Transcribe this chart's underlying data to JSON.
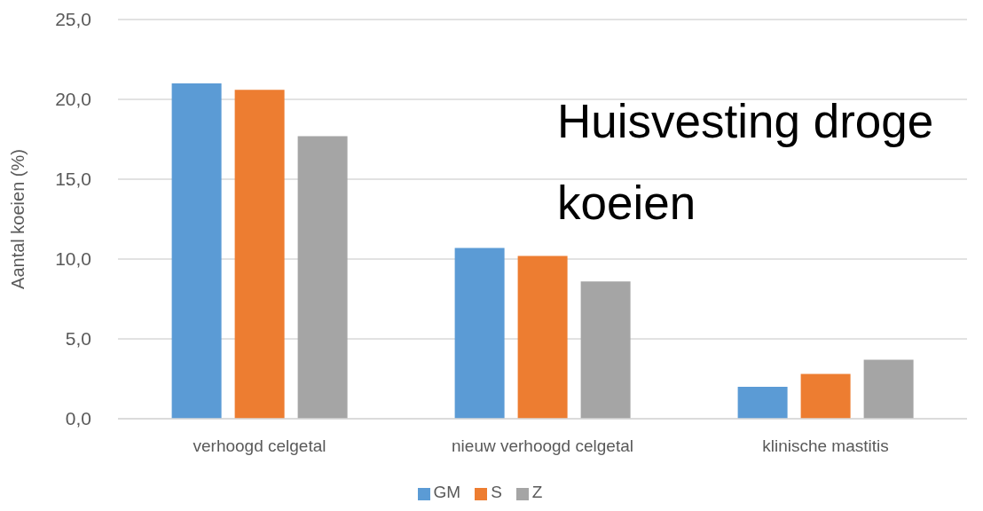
{
  "chart_data": {
    "type": "bar",
    "title": "Huisvesting droge koeien",
    "ylabel": "Aantal koeien (%)",
    "categories": [
      "verhoogd celgetal",
      "nieuw verhoogd celgetal",
      "klinische mastitis"
    ],
    "series": [
      {
        "name": "GM",
        "color": "#5b9bd5",
        "values": [
          21.0,
          10.7,
          2.0
        ]
      },
      {
        "name": "S",
        "color": "#ed7d31",
        "values": [
          20.6,
          10.2,
          2.8
        ]
      },
      {
        "name": "Z",
        "color": "#a5a5a5",
        "values": [
          17.7,
          8.6,
          3.7
        ]
      }
    ],
    "ylim": [
      0,
      25
    ],
    "yticks": [
      {
        "value": 0,
        "label": "0,0"
      },
      {
        "value": 5,
        "label": "5,0"
      },
      {
        "value": 10,
        "label": "10,0"
      },
      {
        "value": 15,
        "label": "15,0"
      },
      {
        "value": 20,
        "label": "20,0"
      },
      {
        "value": 25,
        "label": "25,0"
      }
    ],
    "grid": "y",
    "legend": "bottom"
  }
}
